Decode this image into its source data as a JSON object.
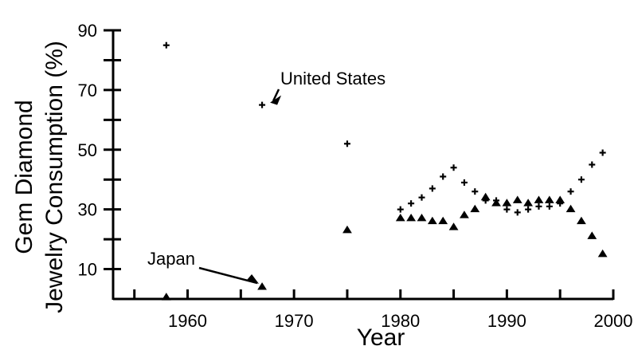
{
  "chart_data": {
    "type": "scatter",
    "xlabel": "Year",
    "ylabel_line1": "Gem Diamond",
    "ylabel_line2": "Jewelry Consumption (%)",
    "xlim": [
      1953,
      2000
    ],
    "ylim": [
      0,
      90
    ],
    "x_ticks": [
      1960,
      1970,
      1980,
      1990,
      2000
    ],
    "y_ticks": [
      10,
      30,
      50,
      70,
      90
    ],
    "grid": false,
    "series": [
      {
        "name": "United States",
        "marker": "plus",
        "x": [
          1958,
          1967,
          1975,
          1980,
          1981,
          1982,
          1983,
          1984,
          1985,
          1986,
          1987,
          1988,
          1989,
          1990,
          1991,
          1992,
          1993,
          1994,
          1995,
          1996,
          1997,
          1998,
          1999
        ],
        "y": [
          85,
          65,
          52,
          30,
          32,
          34,
          37,
          41,
          44,
          39,
          36,
          33,
          33,
          30,
          29,
          30,
          31,
          31,
          32,
          36,
          40,
          45,
          49
        ]
      },
      {
        "name": "Japan",
        "marker": "triangle",
        "x": [
          1958,
          1967,
          1975,
          1980,
          1981,
          1982,
          1983,
          1984,
          1985,
          1986,
          1987,
          1988,
          1989,
          1990,
          1991,
          1992,
          1993,
          1994,
          1995,
          1996,
          1997,
          1998,
          1999
        ],
        "y": [
          0.5,
          4,
          23,
          27,
          27,
          27,
          26,
          26,
          24,
          28,
          30,
          34,
          32,
          32,
          33,
          32,
          33,
          33,
          33,
          30,
          26,
          21,
          15
        ]
      }
    ],
    "annotations": [
      {
        "text": "United States",
        "series": "United States",
        "x": 1967,
        "y": 65
      },
      {
        "text": "Japan",
        "series": "Japan",
        "x": 1967,
        "y": 4
      }
    ]
  }
}
